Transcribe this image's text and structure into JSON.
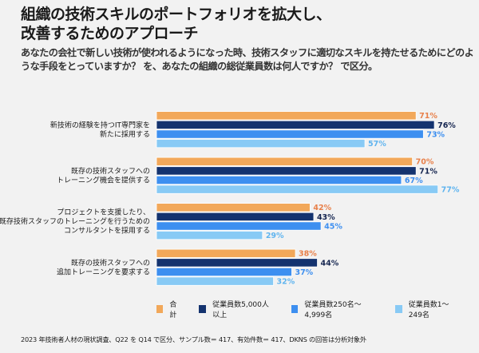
{
  "header": {
    "title": "組織の技術スキルのポートフォリオを拡大し、\n改善するためのアプローチ",
    "subtitle": "あなたの会社で新しい技術が使われるようになった時、技術スタッフに適切なスキルを持たせるためにどのような手段をとっていますか？ を、あなたの組織の総従業員数は何人ですか？ で区分。"
  },
  "chart_data": {
    "type": "bar",
    "orientation": "horizontal",
    "title": "組織の技術スキルのポートフォリオを拡大し、改善するためのアプローチ",
    "xlabel": "",
    "ylabel": "",
    "xlim": [
      0,
      100
    ],
    "grid": false,
    "legend_position": "bottom-right",
    "value_suffix": "%",
    "categories": [
      [
        "新技術の経験を持つIT専門家を",
        "新たに採用する"
      ],
      [
        "既存の技術スタッフへの",
        "トレーニング機会を提供する"
      ],
      [
        "プロジェクトを支援したり、",
        "既存技術スタッフのトレーニングを行うための",
        "コンサルタントを採用する"
      ],
      [
        "既存の技術スタッフへの",
        "追加トレーニングを要求する"
      ]
    ],
    "series": [
      {
        "name": "合計",
        "color": "#f2a85a",
        "label_color": "#e8804a",
        "values": [
          71,
          70,
          42,
          38
        ]
      },
      {
        "name": "従業員数5,000人以上",
        "color": "#14336f",
        "label_color": "#14244f",
        "values": [
          76,
          71,
          43,
          44
        ]
      },
      {
        "name": "従業員数250名〜4,999名",
        "color": "#3d8ff0",
        "label_color": "#3d8ff0",
        "values": [
          73,
          67,
          45,
          37
        ]
      },
      {
        "name": "従業員数1〜249名",
        "color": "#88caf5",
        "label_color": "#5fb4ef",
        "values": [
          57,
          77,
          29,
          32
        ]
      }
    ]
  },
  "footnote": "2023 年技術者人材の現状調査、Q22 を Q14 で区分、サンプル数＝ 417、有効件数＝ 417、DKNS の回答は分析対象外"
}
